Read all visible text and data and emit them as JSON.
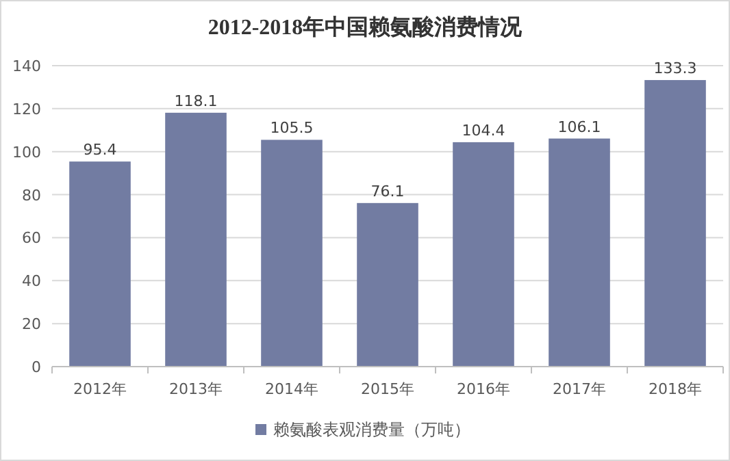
{
  "chart_data": {
    "type": "bar",
    "title": "2012-2018年中国赖氨酸消费情况",
    "categories": [
      "2012年",
      "2013年",
      "2014年",
      "2015年",
      "2016年",
      "2017年",
      "2018年"
    ],
    "series": [
      {
        "name": "赖氨酸表观消费量（万吨）",
        "color": "#727ca2",
        "values": [
          95.4,
          118.1,
          105.5,
          76.1,
          104.4,
          106.1,
          133.3
        ]
      }
    ],
    "ylim": [
      0,
      140
    ],
    "yticks": [
      0,
      20,
      40,
      60,
      80,
      100,
      120,
      140
    ],
    "grid": "y",
    "legend": "bottom",
    "data_labels": true
  }
}
